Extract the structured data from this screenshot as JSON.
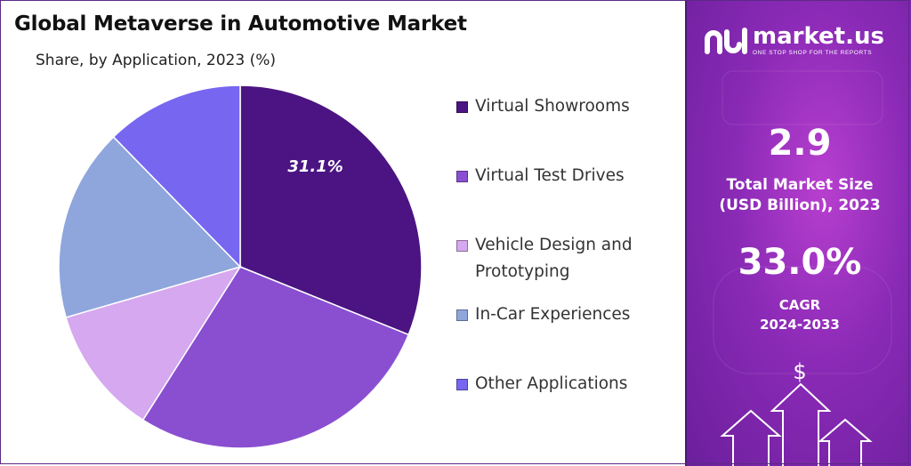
{
  "chart_data": {
    "type": "pie",
    "title": "Global Metaverse in Automotive Market",
    "subtitle": "Share, by Application, 2023 (%)",
    "categories": [
      "Virtual Showrooms",
      "Virtual Test Drives",
      "Vehicle Design and Prototyping",
      "In-Car Experiences",
      "Other Applications"
    ],
    "values": [
      31.1,
      27.9,
      11.5,
      17.2,
      12.3
    ],
    "data_labels": [
      "31.1%",
      "",
      "",
      "",
      ""
    ],
    "colors": [
      "#4b1482",
      "#8a4fd0",
      "#d5a8ef",
      "#8fa6dc",
      "#7766f0"
    ],
    "legend_position": "right"
  },
  "sidebar": {
    "brand_name": "market.us",
    "brand_tagline": "ONE STOP SHOP FOR THE REPORTS",
    "market_size_value": "2.9",
    "market_size_label_line1": "Total Market Size",
    "market_size_label_line2": "(USD Billion), 2023",
    "cagr_value": "33.0%",
    "cagr_label_line1": "CAGR",
    "cagr_label_line2": "2024-2033",
    "dollar_symbol": "$"
  },
  "colors": {
    "panel_bg": "#8a2ab6",
    "text_light": "#ffffff"
  }
}
